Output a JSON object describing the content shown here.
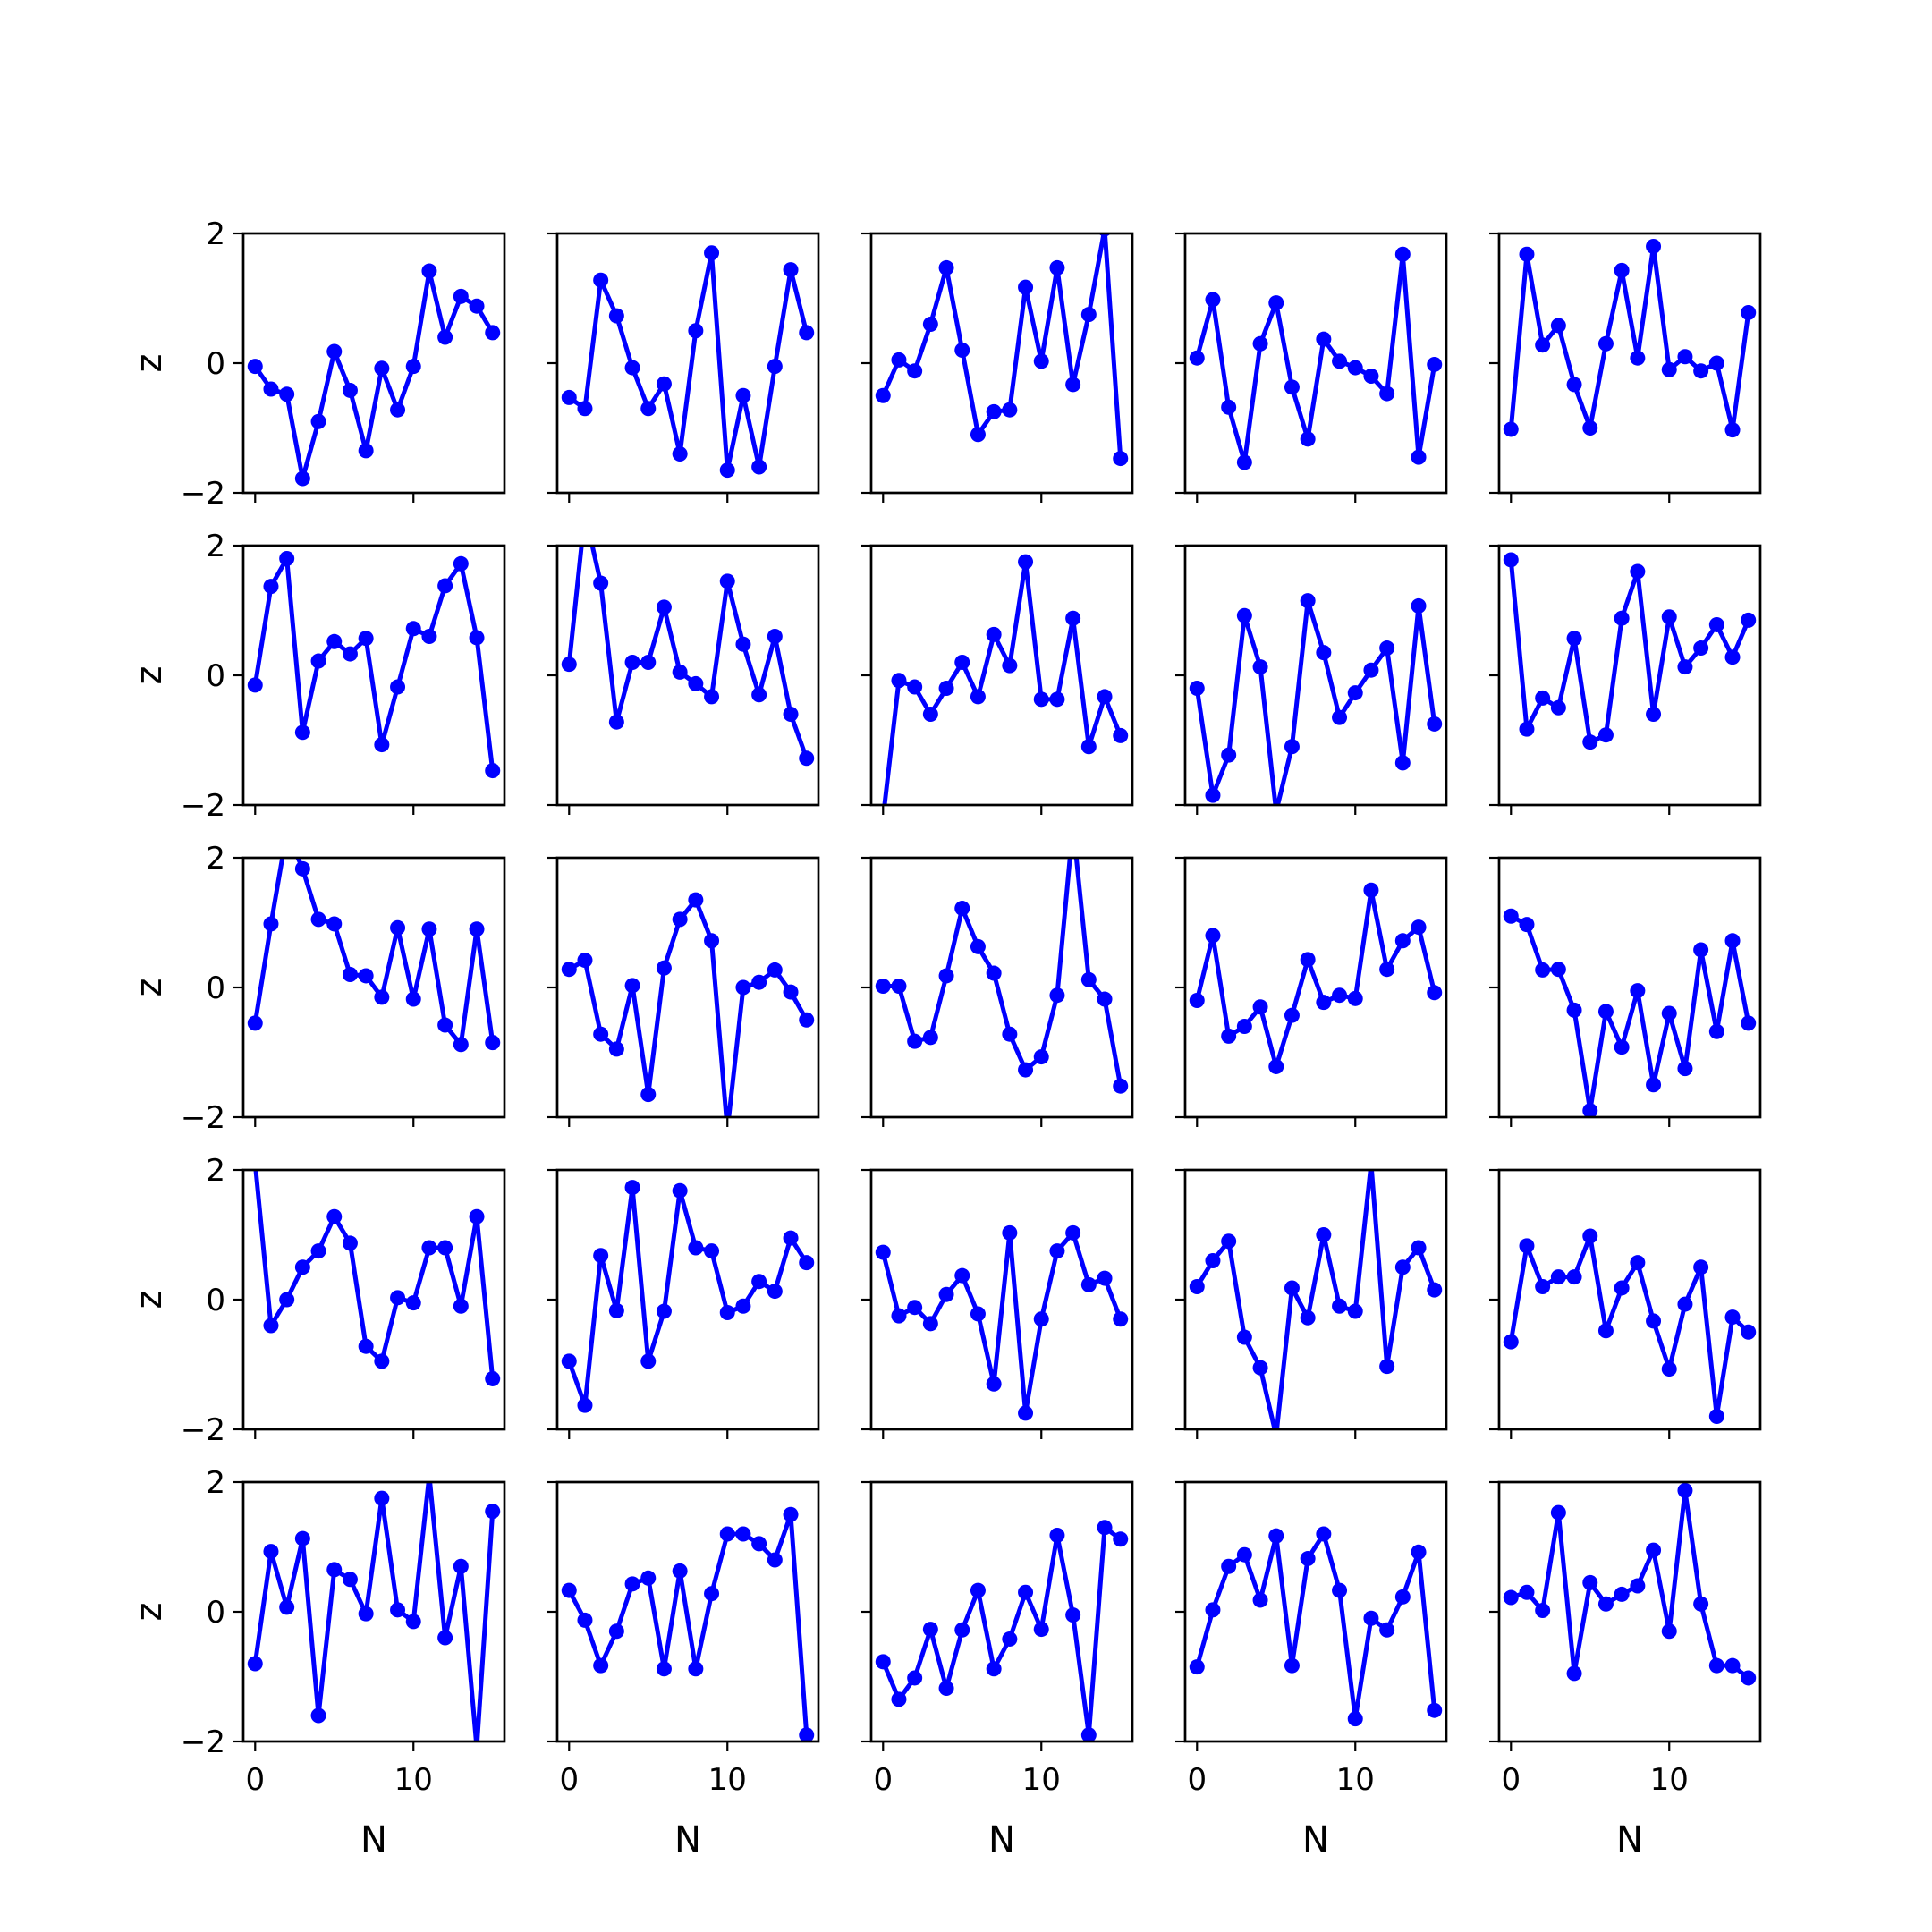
{
  "style": {
    "line_color": "#0000ff",
    "frame_color": "#000000",
    "background": "#ffffff"
  },
  "chart_data": {
    "type": "line",
    "layout": {
      "rows": 5,
      "cols": 5
    },
    "xlabel": "N",
    "ylabel": "z",
    "xlim": [
      -0.75,
      15.75
    ],
    "ylim": [
      -2,
      2
    ],
    "xticks": [
      0,
      10
    ],
    "yticks": [
      -2,
      0,
      2
    ],
    "grid": false,
    "marker": "circle",
    "x": [
      0,
      1,
      2,
      3,
      4,
      5,
      6,
      7,
      8,
      9,
      10,
      11,
      12,
      13,
      14,
      15
    ],
    "panels": [
      [
        -0.05,
        -0.4,
        -0.48,
        -1.78,
        -0.9,
        0.18,
        -0.42,
        -1.35,
        -0.08,
        -0.72,
        -0.05,
        1.42,
        0.4,
        1.03,
        0.88,
        0.47
      ],
      [
        -0.53,
        -0.7,
        1.28,
        0.73,
        -0.07,
        -0.7,
        -0.32,
        -1.4,
        0.5,
        1.7,
        -1.65,
        -0.5,
        -1.6,
        -0.05,
        1.44,
        0.47
      ],
      [
        -0.5,
        0.05,
        -0.12,
        0.6,
        1.47,
        0.2,
        -1.1,
        -0.75,
        -0.72,
        1.17,
        0.03,
        1.47,
        -0.33,
        0.75,
        2.07,
        -1.47
      ],
      [
        0.08,
        0.98,
        -0.68,
        -1.53,
        0.3,
        0.93,
        -0.37,
        -1.17,
        0.37,
        0.03,
        -0.07,
        -0.2,
        -0.47,
        1.68,
        -1.45,
        -0.02
      ],
      [
        -1.02,
        1.68,
        0.28,
        0.58,
        -0.33,
        -1.0,
        0.3,
        1.43,
        0.08,
        1.8,
        -0.1,
        0.1,
        -0.12,
        0.0,
        -1.03,
        0.78
      ],
      [
        -0.15,
        1.37,
        1.8,
        -0.88,
        0.22,
        0.52,
        0.33,
        0.57,
        -1.07,
        -0.18,
        0.72,
        0.6,
        1.38,
        1.72,
        0.58,
        -1.47
      ],
      [
        0.17,
        2.5,
        1.42,
        -0.72,
        0.2,
        0.2,
        1.05,
        0.05,
        -0.13,
        -0.33,
        1.45,
        0.48,
        -0.3,
        0.6,
        -0.6,
        -1.28
      ],
      [
        -2.2,
        -0.08,
        -0.18,
        -0.6,
        -0.2,
        0.2,
        -0.33,
        0.63,
        0.15,
        1.75,
        -0.37,
        -0.37,
        0.88,
        -1.1,
        -0.33,
        -0.93
      ],
      [
        -0.2,
        -1.85,
        -1.23,
        0.92,
        0.13,
        -2.1,
        -1.1,
        1.15,
        0.35,
        -0.65,
        -0.27,
        0.08,
        0.42,
        -1.35,
        1.07,
        -0.75
      ],
      [
        1.78,
        -0.83,
        -0.35,
        -0.5,
        0.57,
        -1.03,
        -0.92,
        0.88,
        1.6,
        -0.6,
        0.9,
        0.13,
        0.42,
        0.78,
        0.28,
        0.85
      ],
      [
        -0.55,
        0.98,
        2.4,
        1.83,
        1.05,
        0.98,
        0.2,
        0.18,
        -0.15,
        0.92,
        -0.18,
        0.9,
        -0.58,
        -0.88,
        0.9,
        -0.85
      ],
      [
        0.28,
        0.42,
        -0.72,
        -0.95,
        0.03,
        -1.65,
        0.3,
        1.05,
        1.35,
        0.72,
        -2.2,
        0.0,
        0.08,
        0.27,
        -0.07,
        -0.5
      ],
      [
        0.02,
        0.02,
        -0.83,
        -0.77,
        0.18,
        1.22,
        0.63,
        0.22,
        -0.72,
        -1.27,
        -1.07,
        -0.12,
        2.5,
        0.12,
        -0.18,
        -1.52
      ],
      [
        -0.2,
        0.8,
        -0.75,
        -0.6,
        -0.3,
        -1.22,
        -0.43,
        0.43,
        -0.23,
        -0.12,
        -0.17,
        1.5,
        0.28,
        0.72,
        0.93,
        -0.08
      ],
      [
        1.1,
        0.97,
        0.27,
        0.28,
        -0.35,
        -1.9,
        -0.37,
        -0.92,
        -0.05,
        -1.5,
        -0.4,
        -1.25,
        0.58,
        -0.68,
        0.72,
        -0.55
      ]
    ],
    "panels_lower": [
      [
        2.1,
        -0.4,
        0.0,
        0.5,
        0.75,
        1.28,
        0.87,
        -0.72,
        -0.95,
        0.03,
        -0.05,
        0.8,
        0.8,
        -0.1,
        1.28,
        -1.22
      ],
      [
        -0.95,
        -1.63,
        0.68,
        -0.17,
        1.73,
        -0.95,
        -0.18,
        1.68,
        0.8,
        0.75,
        -0.2,
        -0.1,
        0.28,
        0.13,
        0.95,
        0.57
      ],
      [
        0.73,
        -0.25,
        -0.12,
        -0.37,
        0.08,
        0.37,
        -0.22,
        -1.3,
        1.03,
        -1.75,
        -0.3,
        0.75,
        1.03,
        0.23,
        0.33,
        -0.3
      ],
      [
        0.2,
        0.6,
        0.9,
        -0.58,
        -1.05,
        -2.1,
        0.18,
        -0.28,
        1.0,
        -0.1,
        -0.18,
        2.1,
        -1.03,
        0.5,
        0.8,
        0.15
      ],
      [
        -0.65,
        0.83,
        0.2,
        0.35,
        0.35,
        0.98,
        -0.48,
        0.18,
        0.57,
        -0.33,
        -1.07,
        -0.07,
        0.5,
        -1.8,
        -0.27,
        -0.5
      ],
      [
        -0.8,
        0.93,
        0.07,
        1.13,
        -1.6,
        0.65,
        0.5,
        -0.03,
        1.75,
        0.03,
        -0.15,
        2.1,
        -0.4,
        0.7,
        -2.1,
        1.55
      ],
      [
        0.33,
        -0.13,
        -0.83,
        -0.3,
        0.43,
        0.52,
        -0.88,
        0.63,
        -0.88,
        0.28,
        1.2,
        1.2,
        1.05,
        0.8,
        1.5,
        -1.9
      ],
      [
        -0.77,
        -1.35,
        -1.02,
        -0.27,
        -1.18,
        -0.28,
        0.33,
        -0.88,
        -0.42,
        0.3,
        -0.27,
        1.18,
        -0.05,
        -1.9,
        1.3,
        1.12
      ],
      [
        -0.85,
        0.03,
        0.7,
        0.88,
        0.18,
        1.17,
        -0.83,
        0.82,
        1.2,
        0.33,
        -1.65,
        -0.1,
        -0.28,
        0.23,
        0.92,
        -1.52
      ],
      [
        0.22,
        0.3,
        0.02,
        1.53,
        -0.95,
        0.45,
        0.12,
        0.27,
        0.4,
        0.95,
        -0.3,
        1.87,
        0.12,
        -0.83,
        -0.83,
        -1.02
      ]
    ]
  }
}
